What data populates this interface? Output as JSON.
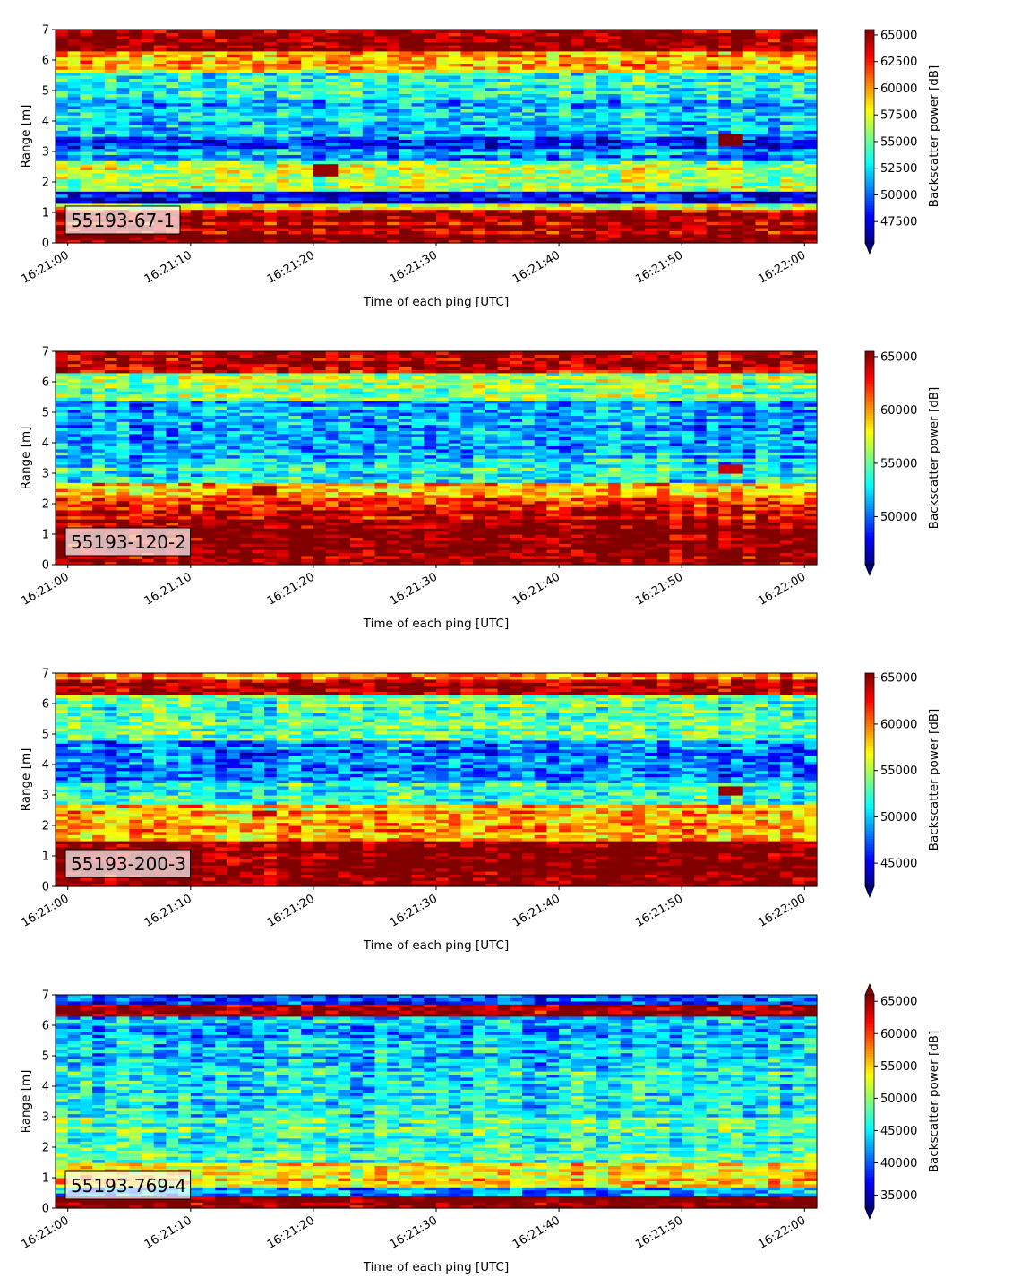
{
  "figure": {
    "xlabel": "Time of each ping [UTC]",
    "ylabel": "Range [m]",
    "colorbar_label": "Backscatter power [dB]",
    "colormap": "jet",
    "x_ticks": [
      "16:21:00",
      "16:21:10",
      "16:21:20",
      "16:21:30",
      "16:21:40",
      "16:21:50",
      "16:22:00"
    ],
    "y_ticks": [
      "0",
      "1",
      "2",
      "3",
      "4",
      "5",
      "6",
      "7"
    ]
  },
  "chart_data": [
    {
      "type": "heatmap",
      "title": "",
      "panel_label": "55193-67-1",
      "xlabel": "Time of each ping [UTC]",
      "ylabel": "Range [m]",
      "xlim": [
        "16:21:00",
        "16:22:00"
      ],
      "ylim": [
        0,
        7
      ],
      "colorbar": {
        "label": "Backscatter power [dB]",
        "vmin": 45500,
        "vmax": 65500,
        "ticks": [
          47500,
          50000,
          52500,
          55000,
          57500,
          60000,
          62500,
          65000
        ],
        "extend": "min"
      },
      "profile": [
        {
          "range": [
            0.0,
            0.3
          ],
          "value": 65500
        },
        {
          "range": [
            0.3,
            1.1
          ],
          "value": 64500
        },
        {
          "range": [
            1.1,
            1.3
          ],
          "value": 57000
        },
        {
          "range": [
            1.3,
            1.7
          ],
          "value": 47500
        },
        {
          "range": [
            1.7,
            2.7
          ],
          "value": 56500
        },
        {
          "range": [
            2.7,
            3.1
          ],
          "value": 51000
        },
        {
          "range": [
            3.1,
            3.5
          ],
          "value": 48500
        },
        {
          "range": [
            3.5,
            4.7
          ],
          "value": 52000
        },
        {
          "range": [
            4.7,
            5.6
          ],
          "value": 53500
        },
        {
          "range": [
            5.6,
            6.3
          ],
          "value": 59000
        },
        {
          "range": [
            6.3,
            7.0
          ],
          "value": 65500
        }
      ],
      "features": [
        {
          "time": "16:21:21",
          "range": [
            2.2,
            2.6
          ],
          "value": 65000
        },
        {
          "time": "16:21:54",
          "range": [
            3.2,
            3.6
          ],
          "value": 65500
        }
      ]
    },
    {
      "type": "heatmap",
      "title": "",
      "panel_label": "55193-120-2",
      "xlabel": "Time of each ping [UTC]",
      "ylabel": "Range [m]",
      "xlim": [
        "16:21:00",
        "16:22:00"
      ],
      "ylim": [
        0,
        7
      ],
      "colorbar": {
        "label": "Backscatter power [dB]",
        "vmin": 45500,
        "vmax": 65500,
        "ticks": [
          50000,
          55000,
          60000,
          65000
        ],
        "extend": "min"
      },
      "profile": [
        {
          "range": [
            0.0,
            0.4
          ],
          "value": 64500
        },
        {
          "range": [
            0.4,
            1.5
          ],
          "value": 65500
        },
        {
          "range": [
            1.5,
            2.2
          ],
          "value": 63000
        },
        {
          "range": [
            2.2,
            2.7
          ],
          "value": 59000
        },
        {
          "range": [
            2.7,
            3.4
          ],
          "value": 53000
        },
        {
          "range": [
            3.4,
            4.4
          ],
          "value": 52000
        },
        {
          "range": [
            4.4,
            5.4
          ],
          "value": 51500
        },
        {
          "range": [
            5.4,
            6.3
          ],
          "value": 55500
        },
        {
          "range": [
            6.3,
            7.0
          ],
          "value": 64000
        }
      ],
      "features": [
        {
          "time": "16:21:16",
          "range": [
            2.3,
            2.6
          ],
          "value": 65000
        },
        {
          "time": "16:21:54",
          "range": [
            3.0,
            3.3
          ],
          "value": 64000
        }
      ]
    },
    {
      "type": "heatmap",
      "title": "",
      "panel_label": "55193-200-3",
      "xlabel": "Time of each ping [UTC]",
      "ylabel": "Range [m]",
      "xlim": [
        "16:21:00",
        "16:22:00"
      ],
      "ylim": [
        0,
        7
      ],
      "colorbar": {
        "label": "Backscatter power [dB]",
        "vmin": 42500,
        "vmax": 65500,
        "ticks": [
          45000,
          50000,
          55000,
          60000,
          65000
        ],
        "extend": "min"
      },
      "profile": [
        {
          "range": [
            0.0,
            1.5
          ],
          "value": 65500
        },
        {
          "range": [
            1.5,
            2.7
          ],
          "value": 58000
        },
        {
          "range": [
            2.7,
            3.4
          ],
          "value": 52000
        },
        {
          "range": [
            3.4,
            4.8
          ],
          "value": 48000
        },
        {
          "range": [
            4.8,
            6.3
          ],
          "value": 53000
        },
        {
          "range": [
            6.3,
            6.8
          ],
          "value": 64500
        },
        {
          "range": [
            6.8,
            7.0
          ],
          "value": 60000
        }
      ],
      "features": [
        {
          "time": "16:21:16",
          "range": [
            2.3,
            2.5
          ],
          "value": 64000
        },
        {
          "time": "16:21:54",
          "range": [
            3.0,
            3.3
          ],
          "value": 65000
        }
      ]
    },
    {
      "type": "heatmap",
      "title": "",
      "panel_label": "55193-769-4",
      "xlabel": "Time of each ping [UTC]",
      "ylabel": "Range [m]",
      "xlim": [
        "16:21:00",
        "16:22:00"
      ],
      "ylim": [
        0,
        7
      ],
      "colorbar": {
        "label": "Backscatter power [dB]",
        "vmin": 33000,
        "vmax": 66000,
        "ticks": [
          35000,
          40000,
          45000,
          50000,
          55000,
          60000,
          65000
        ],
        "extend": "both"
      },
      "profile": [
        {
          "range": [
            0.0,
            0.4
          ],
          "value": 66000
        },
        {
          "range": [
            0.4,
            0.7
          ],
          "value": 42000
        },
        {
          "range": [
            0.7,
            1.5
          ],
          "value": 53500
        },
        {
          "range": [
            1.5,
            3.0
          ],
          "value": 47000
        },
        {
          "range": [
            3.0,
            4.5
          ],
          "value": 45500
        },
        {
          "range": [
            4.5,
            6.3
          ],
          "value": 43500
        },
        {
          "range": [
            6.3,
            6.7
          ],
          "value": 65500
        },
        {
          "range": [
            6.7,
            7.0
          ],
          "value": 40000
        }
      ],
      "features": []
    }
  ]
}
